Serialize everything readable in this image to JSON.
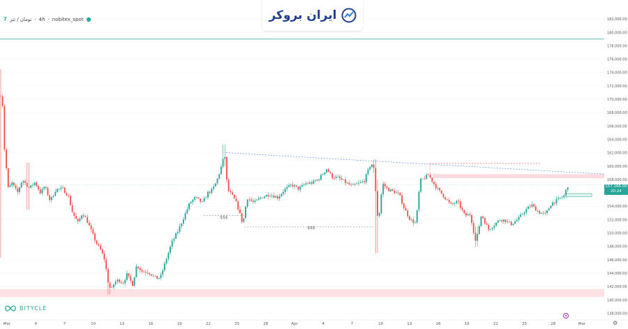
{
  "header": {
    "symbol_icon": "symbol-logo-icon",
    "symbol": "تومان / تتر",
    "interval": "4h",
    "exchange": "nobitex_spot"
  },
  "brand": {
    "name": "ایران بروکر",
    "icon": "chart-trend-logo-icon"
  },
  "footer_logo": {
    "name": "BITYCLE"
  },
  "price_tag": {
    "price": "157,166.00",
    "countdown": "20:24"
  },
  "colors": {
    "up": "#26a69a",
    "down": "#ef5350",
    "zone": "#fbd7dc",
    "trendline": "#5b8def"
  },
  "chart_data": {
    "type": "candlestick",
    "ylim": [
      137000,
      184000
    ],
    "y_ticks": [
      "182,000.00",
      "180,000.00",
      "178,000.00",
      "176,000.00",
      "174,000.00",
      "172,000.00",
      "170,000.00",
      "168,000.00",
      "166,000.00",
      "164,000.00",
      "162,000.00",
      "160,000.00",
      "158,000.00",
      "156,000.00",
      "154,000.00",
      "152,000.00",
      "150,000.00",
      "148,000.00",
      "146,000.00",
      "144,000.00",
      "142,000.00",
      "140,000.00",
      "138,000.00"
    ],
    "x_ticks": [
      "Mar",
      "4",
      "7",
      "10",
      "13",
      "16",
      "19",
      "22",
      "25",
      "28",
      "Apr",
      "4",
      "7",
      "10",
      "13",
      "16",
      "19",
      "22",
      "25",
      "28",
      "Mar"
    ],
    "annotations": [
      "$$$",
      "$$$"
    ],
    "horizontal_lines": [
      179000,
      157200
    ],
    "zones": [
      {
        "from": 140400,
        "to": 141600
      },
      {
        "from": 158200,
        "to": 158800
      }
    ],
    "path": [
      [
        0,
        170500
      ],
      [
        3,
        171000
      ],
      [
        6,
        163000
      ],
      [
        12,
        156500
      ],
      [
        17,
        157500
      ],
      [
        25,
        156000
      ],
      [
        32,
        158000
      ],
      [
        42,
        156700
      ],
      [
        50,
        157600
      ],
      [
        58,
        156000
      ],
      [
        64,
        157000
      ],
      [
        72,
        154800
      ],
      [
        80,
        156500
      ],
      [
        90,
        156600
      ],
      [
        98,
        155500
      ],
      [
        104,
        153000
      ],
      [
        112,
        151500
      ],
      [
        118,
        153000
      ],
      [
        124,
        152000
      ],
      [
        128,
        151000
      ],
      [
        132,
        150000
      ],
      [
        138,
        148500
      ],
      [
        144,
        147500
      ],
      [
        150,
        146000
      ],
      [
        156,
        142000
      ],
      [
        160,
        141600
      ],
      [
        164,
        142600
      ],
      [
        170,
        143000
      ],
      [
        176,
        142500
      ],
      [
        182,
        143800
      ],
      [
        190,
        142300
      ],
      [
        196,
        145200
      ],
      [
        204,
        144200
      ],
      [
        212,
        144200
      ],
      [
        218,
        143700
      ],
      [
        224,
        143200
      ],
      [
        230,
        143400
      ],
      [
        238,
        146000
      ],
      [
        246,
        148500
      ],
      [
        256,
        150500
      ],
      [
        264,
        152500
      ],
      [
        272,
        154500
      ],
      [
        280,
        155300
      ],
      [
        290,
        154500
      ],
      [
        298,
        156000
      ],
      [
        304,
        156400
      ],
      [
        310,
        157600
      ],
      [
        316,
        159500
      ],
      [
        322,
        161800
      ],
      [
        326,
        156500
      ],
      [
        334,
        155400
      ],
      [
        340,
        154200
      ],
      [
        348,
        151300
      ],
      [
        354,
        155300
      ],
      [
        364,
        154500
      ],
      [
        374,
        155300
      ],
      [
        386,
        155800
      ],
      [
        398,
        155300
      ],
      [
        408,
        156500
      ],
      [
        418,
        157200
      ],
      [
        428,
        156600
      ],
      [
        438,
        157400
      ],
      [
        448,
        157500
      ],
      [
        458,
        158200
      ],
      [
        468,
        159600
      ],
      [
        476,
        158400
      ],
      [
        486,
        158200
      ],
      [
        496,
        157500
      ],
      [
        504,
        157000
      ],
      [
        514,
        157400
      ],
      [
        522,
        157800
      ],
      [
        532,
        160500
      ],
      [
        536,
        159500
      ],
      [
        542,
        151300
      ],
      [
        548,
        157400
      ],
      [
        556,
        156500
      ],
      [
        564,
        156200
      ],
      [
        572,
        155800
      ],
      [
        580,
        153500
      ],
      [
        588,
        152000
      ],
      [
        596,
        151400
      ],
      [
        602,
        157800
      ],
      [
        608,
        158200
      ],
      [
        614,
        158700
      ],
      [
        620,
        157700
      ],
      [
        626,
        156700
      ],
      [
        636,
        155500
      ],
      [
        646,
        154200
      ],
      [
        656,
        154700
      ],
      [
        666,
        152600
      ],
      [
        674,
        152800
      ],
      [
        682,
        148500
      ],
      [
        690,
        152800
      ],
      [
        700,
        150500
      ],
      [
        708,
        151200
      ],
      [
        716,
        152000
      ],
      [
        724,
        151900
      ],
      [
        732,
        151300
      ],
      [
        742,
        152000
      ],
      [
        752,
        153300
      ],
      [
        762,
        154200
      ],
      [
        772,
        153100
      ],
      [
        782,
        152800
      ],
      [
        790,
        154400
      ],
      [
        800,
        155000
      ],
      [
        808,
        155500
      ],
      [
        814,
        157166
      ]
    ]
  }
}
